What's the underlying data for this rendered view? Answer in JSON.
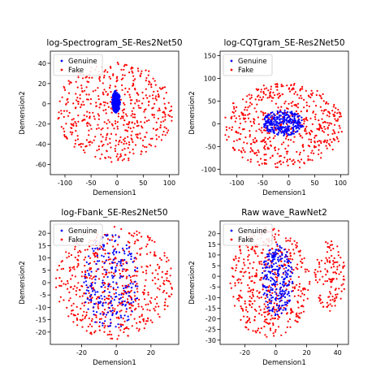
{
  "chart_data": [
    {
      "type": "scatter",
      "title": "log-Spectrogram_SE-Res2Net50",
      "xlabel": "Demension1",
      "ylabel": "Demension2",
      "xlim": [
        -128,
        118
      ],
      "ylim": [
        -70,
        52
      ],
      "xticks": [
        -100,
        -50,
        0,
        50,
        100
      ],
      "yticks": [
        -60,
        -40,
        -20,
        0,
        20,
        40
      ],
      "grid": false,
      "legend": "top-left",
      "series": [
        {
          "name": "Genuine",
          "color": "#0000ff",
          "shape": {
            "kind": "ellipse",
            "cx": -2,
            "cy": 2,
            "rx": 8,
            "ry": 11,
            "n": 260,
            "seed": 11
          }
        },
        {
          "name": "Fake",
          "color": "#ff0000",
          "shape": {
            "kind": "ellipse",
            "cx": -5,
            "cy": -8,
            "rx": 112,
            "ry": 50,
            "n": 520,
            "seed": 12
          }
        }
      ]
    },
    {
      "type": "scatter",
      "title": "log-CQTgram_SE-Res2Net50",
      "xlabel": "Demension1",
      "ylabel": "Demension2",
      "xlim": [
        -132,
        115
      ],
      "ylim": [
        -112,
        160
      ],
      "xticks": [
        -100,
        -50,
        0,
        50,
        100
      ],
      "yticks": [
        -100,
        -50,
        0,
        50,
        100,
        150
      ],
      "grid": false,
      "legend": "top-left",
      "series": [
        {
          "name": "Genuine",
          "color": "#0000ff",
          "shape": {
            "kind": "ellipse",
            "cx": -10,
            "cy": 2,
            "rx": 40,
            "ry": 28,
            "n": 300,
            "seed": 21
          }
        },
        {
          "name": "Fake",
          "color": "#ff0000",
          "shape": {
            "kind": "ellipse",
            "cx": -10,
            "cy": -5,
            "rx": 115,
            "ry": 95,
            "n": 560,
            "seed": 22
          }
        }
      ]
    },
    {
      "type": "scatter",
      "title": "log-Fbank_SE-Res2Net50",
      "xlabel": "Demension1",
      "ylabel": "Demension2",
      "xlim": [
        -38,
        36
      ],
      "ylim": [
        -25,
        25
      ],
      "xticks": [
        -20,
        0,
        20
      ],
      "yticks": [
        -20,
        -15,
        -10,
        -5,
        0,
        5,
        10,
        15,
        20
      ],
      "grid": false,
      "legend": "top-left",
      "series": [
        {
          "name": "Genuine",
          "color": "#0000ff",
          "shape": {
            "kind": "ellipse",
            "cx": -3,
            "cy": 0,
            "rx": 16,
            "ry": 20,
            "n": 230,
            "seed": 31
          }
        },
        {
          "name": "Fake",
          "color": "#ff0000",
          "shape": {
            "kind": "ellipse",
            "cx": -1,
            "cy": 0,
            "rx": 34,
            "ry": 23,
            "n": 560,
            "seed": 32
          }
        }
      ]
    },
    {
      "type": "scatter",
      "title": "Raw wave_RawNet2",
      "xlabel": "Demension1",
      "ylabel": "Demension2",
      "xlim": [
        -36,
        47
      ],
      "ylim": [
        -32,
        26
      ],
      "xticks": [
        -20,
        0,
        20,
        40
      ],
      "yticks": [
        -30,
        -25,
        -20,
        -15,
        -10,
        -5,
        0,
        5,
        10,
        15,
        20
      ],
      "grid": false,
      "legend": "top-left",
      "series": [
        {
          "name": "Genuine",
          "color": "#0000ff",
          "shape": {
            "kind": "ellipse",
            "cx": 1,
            "cy": -2,
            "rx": 10,
            "ry": 17,
            "n": 260,
            "seed": 41
          }
        },
        {
          "name": "Fake",
          "color": "#ff0000",
          "shape": {
            "kind": "ellipse",
            "cx": -4,
            "cy": -3,
            "rx": 26,
            "ry": 26,
            "n": 440,
            "seed": 42
          },
          "extra": {
            "kind": "ellipse",
            "cx": 35,
            "cy": 0,
            "rx": 10,
            "ry": 17,
            "n": 120,
            "seed": 43
          }
        }
      ]
    }
  ]
}
